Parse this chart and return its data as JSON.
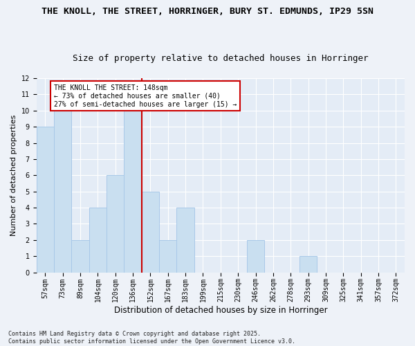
{
  "title_line1": "THE KNOLL, THE STREET, HORRINGER, BURY ST. EDMUNDS, IP29 5SN",
  "title_line2": "Size of property relative to detached houses in Horringer",
  "xlabel": "Distribution of detached houses by size in Horringer",
  "ylabel": "Number of detached properties",
  "categories": [
    "57sqm",
    "73sqm",
    "89sqm",
    "104sqm",
    "120sqm",
    "136sqm",
    "152sqm",
    "167sqm",
    "183sqm",
    "199sqm",
    "215sqm",
    "230sqm",
    "246sqm",
    "262sqm",
    "278sqm",
    "293sqm",
    "309sqm",
    "325sqm",
    "341sqm",
    "357sqm",
    "372sqm"
  ],
  "values": [
    9,
    10,
    2,
    4,
    6,
    10,
    5,
    2,
    4,
    0,
    0,
    0,
    2,
    0,
    0,
    1,
    0,
    0,
    0,
    0,
    0
  ],
  "highlight_index": 6,
  "bar_color": "#c9dff0",
  "bar_edgecolor": "#a8c8e8",
  "highlight_line_color": "#cc0000",
  "ylim": [
    0,
    12
  ],
  "yticks": [
    0,
    1,
    2,
    3,
    4,
    5,
    6,
    7,
    8,
    9,
    10,
    11,
    12
  ],
  "annotation_text": "THE KNOLL THE STREET: 148sqm\n← 73% of detached houses are smaller (40)\n27% of semi-detached houses are larger (15) →",
  "annotation_box_edgecolor": "#cc0000",
  "footer_text": "Contains HM Land Registry data © Crown copyright and database right 2025.\nContains public sector information licensed under the Open Government Licence v3.0.",
  "background_color": "#eef2f8",
  "plot_background_color": "#e4ecf6",
  "grid_color": "#ffffff",
  "title_fontsize": 9.5,
  "subtitle_fontsize": 9,
  "tick_fontsize": 7,
  "xlabel_fontsize": 8.5,
  "ylabel_fontsize": 8
}
